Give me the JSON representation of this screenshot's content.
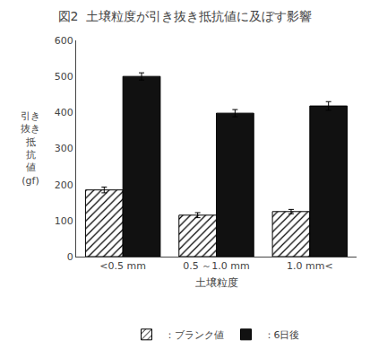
{
  "chart_data": {
    "type": "bar",
    "title": "図2  土壌粒度が引き抜き抵抗値に及ぼす影響",
    "xlabel": "土壌粒度",
    "ylabel": "引き\n抜き\n抵\n抗\n値\n(gf)",
    "categories": [
      "<0.5 mm",
      "0.5 ～1.0 mm",
      "1.0 mm<"
    ],
    "series": [
      {
        "name": "：ブランク値",
        "color": "#ffffff",
        "values": [
          185,
          115,
          125
        ],
        "errors": [
          8,
          7,
          6
        ]
      },
      {
        "name": "：6日後",
        "color": "#111111",
        "values": [
          500,
          398,
          418
        ],
        "errors": [
          10,
          10,
          12
        ]
      }
    ],
    "ylim": [
      0,
      600
    ],
    "yticks": [
      0,
      100,
      200,
      300,
      400,
      500,
      600
    ],
    "grid": false,
    "legend": "lower center"
  }
}
